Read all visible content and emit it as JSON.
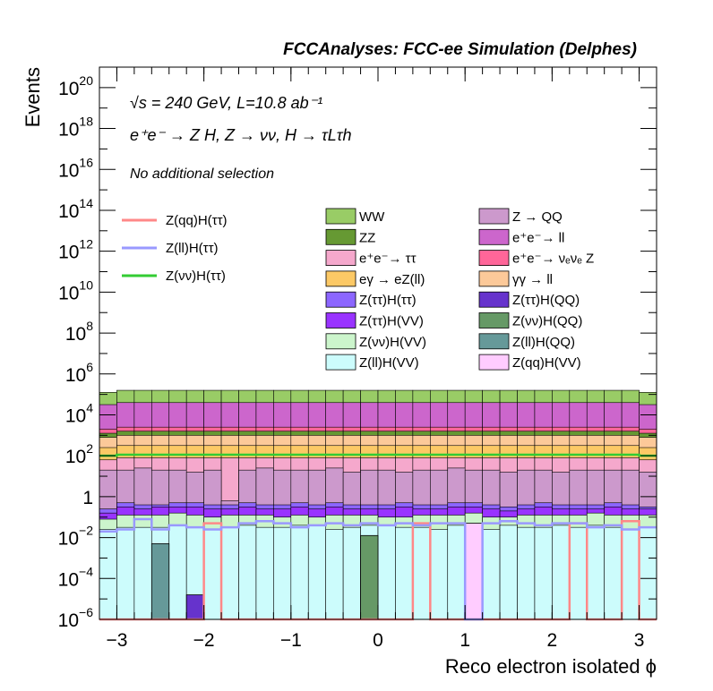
{
  "chart_data": {
    "type": "histogram",
    "title": "FCCAnalyses: FCC-ee Simulation (Delphes)",
    "xlabel": "Reco electron isolated ϕ",
    "ylabel": "Events",
    "log_y": true,
    "xlim": [
      -3.2,
      3.2
    ],
    "ylim": [
      1e-06,
      1e+21
    ],
    "x_ticks": [
      {
        "value": -3,
        "label": "−3"
      },
      {
        "value": -2,
        "label": "−2"
      },
      {
        "value": -1,
        "label": "−1"
      },
      {
        "value": 0,
        "label": "0"
      },
      {
        "value": 1,
        "label": "1"
      },
      {
        "value": 2,
        "label": "2"
      },
      {
        "value": 3,
        "label": "3"
      }
    ],
    "y_ticks": [
      {
        "exp": -6,
        "base": "10",
        "sup": "−6"
      },
      {
        "exp": -4,
        "base": "10",
        "sup": "−4"
      },
      {
        "exp": -2,
        "base": "10",
        "sup": "−2"
      },
      {
        "exp": 0,
        "base": "1",
        "sup": ""
      },
      {
        "exp": 2,
        "base": "10",
        "sup": "2"
      },
      {
        "exp": 4,
        "base": "10",
        "sup": "4"
      },
      {
        "exp": 6,
        "base": "10",
        "sup": "6"
      },
      {
        "exp": 8,
        "base": "10",
        "sup": "8"
      },
      {
        "exp": 10,
        "base": "10",
        "sup": "10"
      },
      {
        "exp": 12,
        "base": "10",
        "sup": "12"
      },
      {
        "exp": 14,
        "base": "10",
        "sup": "14"
      },
      {
        "exp": 16,
        "base": "10",
        "sup": "16"
      },
      {
        "exp": 18,
        "base": "10",
        "sup": "18"
      },
      {
        "exp": 20,
        "base": "10",
        "sup": "20"
      }
    ],
    "annotations": {
      "energy": "√s = 240 GeV, L=10.8 ab⁻¹",
      "process": "e⁺e⁻ → Z H, Z → νν, H → τLτh",
      "selection": "No additional selection"
    },
    "bins": {
      "start": -3.2,
      "width": 0.2,
      "count": 32
    },
    "stack_layers": [
      {
        "name": "Z(ll)H(VV)",
        "color": "#ccfcfc",
        "log10_top": [
          -1.6,
          -1.5,
          -1.5,
          -1.5,
          -1.4,
          -1.5,
          -1.6,
          -1.5,
          -1.4,
          -1.5,
          -1.5,
          -1.4,
          -1.4,
          -1.6,
          -1.5,
          -1.4,
          -1.4,
          -1.5,
          -1.5,
          -1.6,
          -1.4,
          -1.4,
          -1.6,
          -1.4,
          -1.5,
          -1.5,
          -1.4,
          -1.5,
          -1.4,
          -1.5,
          -1.6,
          -1.5
        ]
      },
      {
        "name": "Z(νν)H(VV)",
        "color": "#ccf5cc",
        "log10_top": [
          -1.1,
          -0.9,
          -0.9,
          -0.9,
          -0.8,
          -0.9,
          -1.0,
          -0.9,
          -0.9,
          -0.9,
          -1.0,
          -0.9,
          -1.0,
          -0.9,
          -0.9,
          -0.9,
          -1.0,
          -1.0,
          -0.9,
          -0.9,
          -0.9,
          -0.8,
          -1.0,
          -1.0,
          -0.9,
          -0.9,
          -0.9,
          -0.9,
          -0.8,
          -0.9,
          -0.9,
          -0.9
        ]
      },
      {
        "name": "Z(ττ)H(VV)",
        "color": "#9933ff",
        "log10_top": [
          -0.8,
          -0.5,
          -0.6,
          -0.5,
          -0.5,
          -0.5,
          -0.6,
          -0.6,
          -0.5,
          -0.6,
          -0.6,
          -0.5,
          -0.6,
          -0.5,
          -0.6,
          -0.6,
          -0.6,
          -0.5,
          -0.6,
          -0.6,
          -0.5,
          -0.5,
          -0.6,
          -0.7,
          -0.6,
          -0.5,
          -0.6,
          -0.6,
          -0.6,
          -0.5,
          -0.6,
          -0.6
        ]
      },
      {
        "name": "Z(ττ)H(ττ)",
        "color": "#8c66ff",
        "log10_top": [
          -0.6,
          -0.3,
          -0.4,
          -0.4,
          -0.3,
          -0.3,
          -0.4,
          -0.4,
          -0.3,
          -0.4,
          -0.4,
          -0.3,
          -0.4,
          -0.3,
          -0.4,
          -0.4,
          -0.4,
          -0.3,
          -0.4,
          -0.4,
          -0.3,
          -0.3,
          -0.4,
          -0.5,
          -0.4,
          -0.3,
          -0.4,
          -0.4,
          -0.4,
          -0.3,
          -0.4,
          -0.5
        ]
      },
      {
        "name": "Z → QQ",
        "color": "#cc99cc",
        "log10_top": [
          1.3,
          1.3,
          1.4,
          1.3,
          1.3,
          1.2,
          1.3,
          -0.2,
          1.3,
          1.4,
          1.3,
          1.3,
          1.3,
          1.4,
          1.2,
          1.3,
          1.3,
          1.2,
          1.3,
          1.3,
          1.4,
          1.3,
          1.3,
          1.2,
          1.3,
          1.3,
          1.2,
          1.3,
          1.3,
          1.3,
          1.3,
          1.2
        ]
      },
      {
        "name": "e⁺e⁻ → ττ",
        "color": "#f5a8cc",
        "log10_top": [
          1.8,
          1.9,
          1.9,
          1.9,
          1.9,
          1.9,
          1.9,
          1.9,
          1.9,
          1.9,
          1.9,
          1.9,
          1.9,
          1.9,
          1.9,
          1.9,
          1.9,
          1.9,
          1.9,
          1.9,
          1.9,
          1.9,
          1.9,
          1.9,
          1.9,
          1.9,
          1.9,
          1.9,
          1.9,
          1.9,
          1.9,
          1.8
        ]
      },
      {
        "name": "eγ → eZ(ll)",
        "color": "#fcc966",
        "log10_top": [
          2.4,
          2.5,
          2.5,
          2.5,
          2.5,
          2.5,
          2.5,
          2.5,
          2.5,
          2.5,
          2.5,
          2.5,
          2.5,
          2.5,
          2.5,
          2.5,
          2.5,
          2.5,
          2.5,
          2.5,
          2.5,
          2.5,
          2.5,
          2.5,
          2.5,
          2.5,
          2.5,
          2.5,
          2.5,
          2.5,
          2.5,
          2.4
        ]
      },
      {
        "name": "γγ → ll",
        "color": "#fcc999",
        "log10_top": [
          2.9,
          3.0,
          3.0,
          3.0,
          3.0,
          3.0,
          3.0,
          3.0,
          3.0,
          3.0,
          3.0,
          3.0,
          3.0,
          3.0,
          3.0,
          3.0,
          3.0,
          3.0,
          3.0,
          3.0,
          3.0,
          3.0,
          3.0,
          3.0,
          3.0,
          3.0,
          3.0,
          3.0,
          3.0,
          3.0,
          3.0,
          2.9
        ]
      },
      {
        "name": "ZZ",
        "color": "#669933",
        "log10_top": [
          3.1,
          3.2,
          3.2,
          3.2,
          3.2,
          3.2,
          3.2,
          3.2,
          3.2,
          3.2,
          3.2,
          3.2,
          3.2,
          3.2,
          3.2,
          3.2,
          3.2,
          3.2,
          3.2,
          3.2,
          3.2,
          3.2,
          3.2,
          3.2,
          3.2,
          3.2,
          3.2,
          3.2,
          3.2,
          3.2,
          3.2,
          3.1
        ]
      },
      {
        "name": "e⁺e⁻ → νₑνₑ Z",
        "color": "#ff6699",
        "log10_top": [
          3.3,
          3.4,
          3.4,
          3.4,
          3.4,
          3.4,
          3.4,
          3.4,
          3.4,
          3.4,
          3.4,
          3.4,
          3.4,
          3.4,
          3.4,
          3.4,
          3.4,
          3.4,
          3.4,
          3.4,
          3.4,
          3.4,
          3.4,
          3.4,
          3.4,
          3.4,
          3.4,
          3.4,
          3.4,
          3.4,
          3.4,
          3.3
        ]
      },
      {
        "name": "e⁺e⁻ → ll",
        "color": "#cc66cc",
        "log10_top": [
          4.5,
          4.6,
          4.6,
          4.6,
          4.6,
          4.6,
          4.6,
          4.6,
          4.6,
          4.6,
          4.6,
          4.6,
          4.6,
          4.6,
          4.6,
          4.6,
          4.6,
          4.6,
          4.6,
          4.6,
          4.6,
          4.6,
          4.6,
          4.6,
          4.6,
          4.6,
          4.6,
          4.6,
          4.6,
          4.6,
          4.6,
          4.5
        ]
      },
      {
        "name": "WW",
        "color": "#99cc66",
        "log10_top": [
          5.1,
          5.2,
          5.2,
          5.2,
          5.2,
          5.2,
          5.2,
          5.2,
          5.2,
          5.2,
          5.2,
          5.2,
          5.2,
          5.2,
          5.2,
          5.2,
          5.2,
          5.2,
          5.2,
          5.2,
          5.2,
          5.2,
          5.2,
          5.2,
          5.2,
          5.2,
          5.2,
          5.2,
          5.2,
          5.2,
          5.2,
          5.1
        ]
      }
    ],
    "sparse_histograms": [
      {
        "name": "Z(ll)H(QQ)",
        "color": "#669999",
        "bins": [
          {
            "x0": -2.6,
            "x1": -2.4,
            "log10": -2.3
          }
        ]
      },
      {
        "name": "Z(ττ)H(QQ)",
        "color": "#6633cc",
        "bins": [
          {
            "x0": -2.2,
            "x1": -2.0,
            "log10": -4.8
          }
        ]
      },
      {
        "name": "Z(νν)H(QQ)",
        "color": "#669966",
        "bins": [
          {
            "x0": -0.2,
            "x1": 0.0,
            "log10": -1.9
          }
        ]
      },
      {
        "name": "Z(qq)H(VV)",
        "color": "#ffccff",
        "bins": [
          {
            "x0": 1.0,
            "x1": 1.2,
            "log10": -1.3
          }
        ]
      }
    ],
    "signal_lines": [
      {
        "name": "Z(qq)H(ττ)",
        "color": "#ff8888",
        "width": 2.5,
        "log10": [
          -6.5,
          -6.5,
          -6.5,
          -6.5,
          -6.5,
          -6.5,
          -1.3,
          -6.5,
          -6.5,
          -6.5,
          -6.5,
          -6.5,
          -6.5,
          -6.5,
          -6.5,
          -6.5,
          -6.5,
          -6.5,
          -1.3,
          -6.5,
          -6.5,
          -6.5,
          -6.5,
          -6.5,
          -6.5,
          -6.5,
          -6.5,
          -1.3,
          -6.5,
          -6.5,
          -1.2,
          -6.5
        ]
      },
      {
        "name": "Z(ll)H(ττ)",
        "color": "#9999ff",
        "width": 2.5,
        "log10": [
          -1.7,
          -1.6,
          -1.1,
          -1.6,
          -1.4,
          -1.5,
          -1.6,
          -1.5,
          -1.3,
          -1.2,
          -1.3,
          -1.5,
          -1.4,
          -1.3,
          -1.4,
          -1.3,
          -1.4,
          -1.3,
          -1.4,
          -1.3,
          -1.3,
          -6.5,
          -1.3,
          -1.2,
          -1.3,
          -1.4,
          -1.3,
          -1.3,
          -1.5,
          -1.4,
          -1.6,
          -1.5
        ]
      },
      {
        "name": "Z(νν)H(ττ)",
        "color": "#33cc33",
        "width": 2.5,
        "log10": [
          2.0,
          2.05,
          2.05,
          2.05,
          2.05,
          2.05,
          2.05,
          2.05,
          2.05,
          2.05,
          2.05,
          2.05,
          2.05,
          2.05,
          2.05,
          2.05,
          2.05,
          2.05,
          2.05,
          2.05,
          2.05,
          2.05,
          2.05,
          2.05,
          2.05,
          2.05,
          2.05,
          2.05,
          2.05,
          2.05,
          2.05,
          2.0
        ]
      }
    ],
    "legend_lines": [
      "Z(qq)H(ττ)",
      "Z(ll)H(ττ)",
      "Z(νν)H(ττ)"
    ],
    "legend_col1": [
      "WW",
      "ZZ",
      "e⁺e⁻→ ττ",
      "eγ → eZ(ll)",
      "Z(ττ)H(ττ)",
      "Z(ττ)H(VV)",
      "Z(νν)H(VV)",
      "Z(ll)H(VV)"
    ],
    "legend_col2": [
      "Z → QQ",
      "e⁺e⁻→ ll",
      "e⁺e⁻→ νₑνₑ Z",
      "γγ → ll",
      "Z(ττ)H(QQ)",
      "Z(νν)H(QQ)",
      "Z(ll)H(QQ)",
      "Z(qq)H(VV)"
    ],
    "legend_colors": {
      "WW": "#99cc66",
      "ZZ": "#669933",
      "e⁺e⁻→ ττ": "#f5a8cc",
      "eγ → eZ(ll)": "#fcc966",
      "Z(ττ)H(ττ)": "#8c66ff",
      "Z(ττ)H(VV)": "#9933ff",
      "Z(νν)H(VV)": "#ccf5cc",
      "Z(ll)H(VV)": "#ccfcfc",
      "Z → QQ": "#cc99cc",
      "e⁺e⁻→ ll": "#cc66cc",
      "e⁺e⁻→ νₑνₑ Z": "#ff6699",
      "γγ → ll": "#fcc999",
      "Z(ττ)H(QQ)": "#6633cc",
      "Z(νν)H(QQ)": "#669966",
      "Z(ll)H(QQ)": "#669999",
      "Z(qq)H(VV)": "#ffccff",
      "Z(qq)H(ττ)": "#ff8888",
      "Z(ll)H(ττ)": "#9999ff",
      "Z(νν)H(ττ)": "#33cc33"
    }
  }
}
